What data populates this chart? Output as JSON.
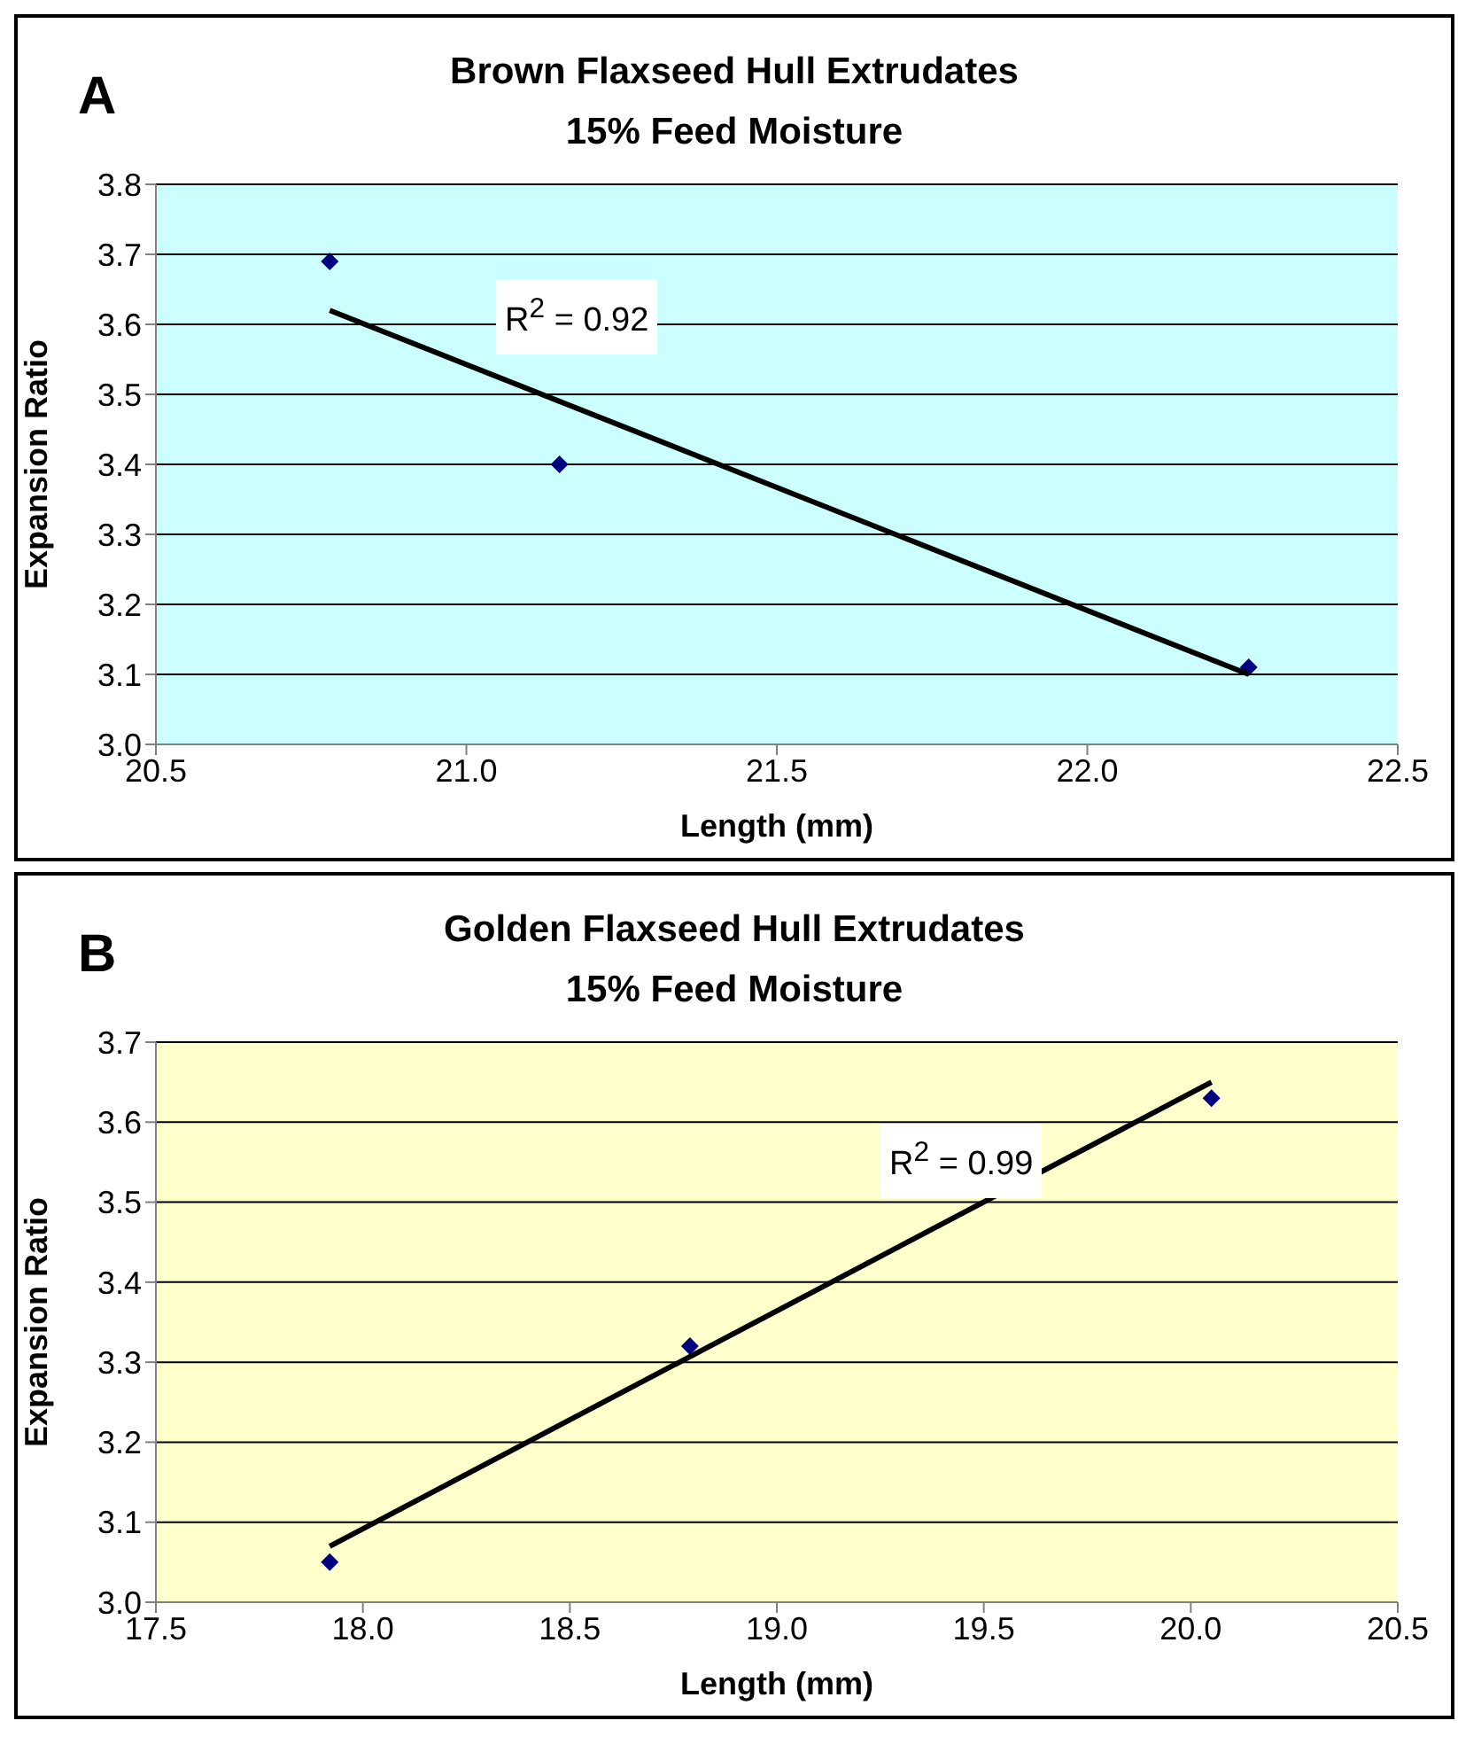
{
  "chart_data": [
    {
      "type": "scatter",
      "title": "Brown Flaxseed Hull Extrudates\n15% Feed Moisture",
      "xlabel": "Length (mm)",
      "ylabel": "Expansion Ratio",
      "annotations": [
        "A",
        "R$^{2}$ = 0.92"
      ],
      "x": [
        20.78,
        21.15,
        22.26
      ],
      "series": [
        {
          "type": "scatter",
          "color": "#000080",
          "values": [
            3.69,
            3.4,
            3.11
          ],
          "marker": "diamond"
        },
        {
          "type": "line",
          "color": "#000000",
          "x": [
            20.78,
            22.26
          ],
          "values": [
            3.62,
            3.1
          ],
          "marker": "none",
          "line_style": "solid"
        }
      ],
      "xlim": [
        20.5,
        22.5
      ],
      "xticks": [
        20.5,
        {
          "value": 21,
          "label": "21.0"
        },
        21.5,
        {
          "value": 22,
          "label": "22.0"
        },
        22.5
      ],
      "ylim": [
        3.0,
        3.8
      ],
      "yticks": [
        {
          "value": 3,
          "label": "3.0"
        },
        3.1,
        3.2,
        3.3,
        3.4,
        3.5,
        3.6,
        3.7,
        3.8
      ],
      "grid": "y"
    },
    {
      "type": "scatter",
      "title": "Golden Flaxseed Hull Extrudates\n15% Feed Moisture",
      "xlabel": "Length (mm)",
      "ylabel": "Expansion Ratio",
      "annotations": [
        "B",
        "R$^{2}$ = 0.99"
      ],
      "x": [
        17.92,
        18.79,
        20.05
      ],
      "series": [
        {
          "type": "scatter",
          "color": "#000080",
          "values": [
            3.05,
            3.32,
            3.63
          ],
          "marker": "diamond"
        },
        {
          "type": "line",
          "color": "#000000",
          "x": [
            17.92,
            20.05
          ],
          "values": [
            3.07,
            3.65
          ],
          "marker": "none",
          "line_style": "solid"
        }
      ],
      "xlim": [
        17.5,
        20.5
      ],
      "xticks": [
        17.5,
        {
          "value": 18,
          "label": "18.0"
        },
        18.5,
        {
          "value": 19,
          "label": "19.0"
        },
        19.5,
        {
          "value": 20,
          "label": "20.0"
        },
        20.5
      ],
      "ylim": [
        3.0,
        3.7
      ],
      "yticks": [
        {
          "value": 3,
          "label": "3.0"
        },
        3.1,
        3.2,
        3.3,
        3.4,
        3.5,
        3.6,
        3.7
      ],
      "grid": "y"
    }
  ]
}
